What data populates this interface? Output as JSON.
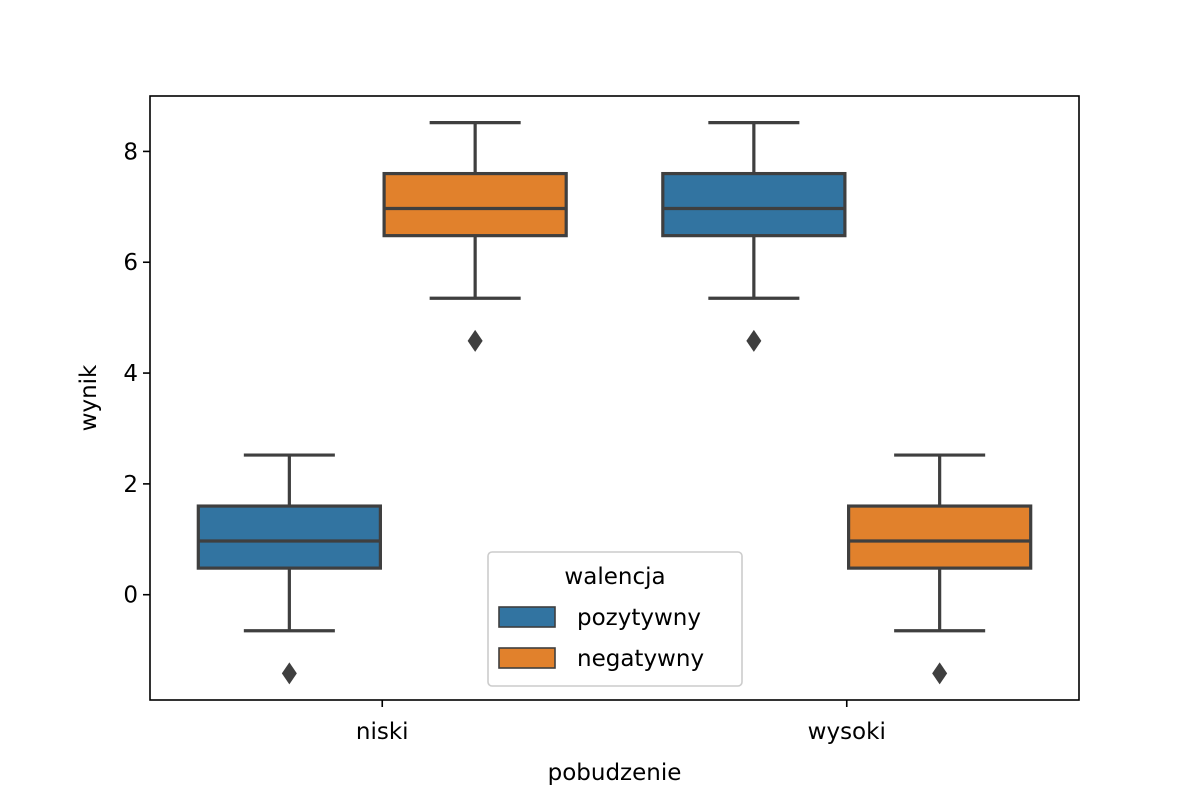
{
  "chart_data": {
    "type": "box",
    "xlabel": "pobudzenie",
    "ylabel": "wynik",
    "categories": [
      "niski",
      "wysoki"
    ],
    "ylim": [
      -1.9,
      9.0
    ],
    "yticks": [
      0,
      2,
      4,
      6,
      8
    ],
    "legend": {
      "title": "walencja",
      "placement": "lower-center"
    },
    "series": [
      {
        "name": "pozytywny",
        "color": "#3274a1",
        "boxes": [
          {
            "category": "niski",
            "whisker_low": -0.65,
            "q1": 0.48,
            "median": 0.97,
            "q3": 1.6,
            "whisker_high": 2.52,
            "outliers": [
              -1.42
            ]
          },
          {
            "category": "wysoki",
            "whisker_low": 5.35,
            "q1": 6.48,
            "median": 6.97,
            "q3": 7.6,
            "whisker_high": 8.52,
            "outliers": [
              4.58
            ]
          }
        ]
      },
      {
        "name": "negatywny",
        "color": "#e1812c",
        "boxes": [
          {
            "category": "niski",
            "whisker_low": 5.35,
            "q1": 6.48,
            "median": 6.97,
            "q3": 7.6,
            "whisker_high": 8.52,
            "outliers": [
              4.58
            ]
          },
          {
            "category": "wysoki",
            "whisker_low": -0.65,
            "q1": 0.48,
            "median": 0.97,
            "q3": 1.6,
            "whisker_high": 2.52,
            "outliers": [
              -1.42
            ]
          }
        ]
      }
    ],
    "grid": false
  }
}
